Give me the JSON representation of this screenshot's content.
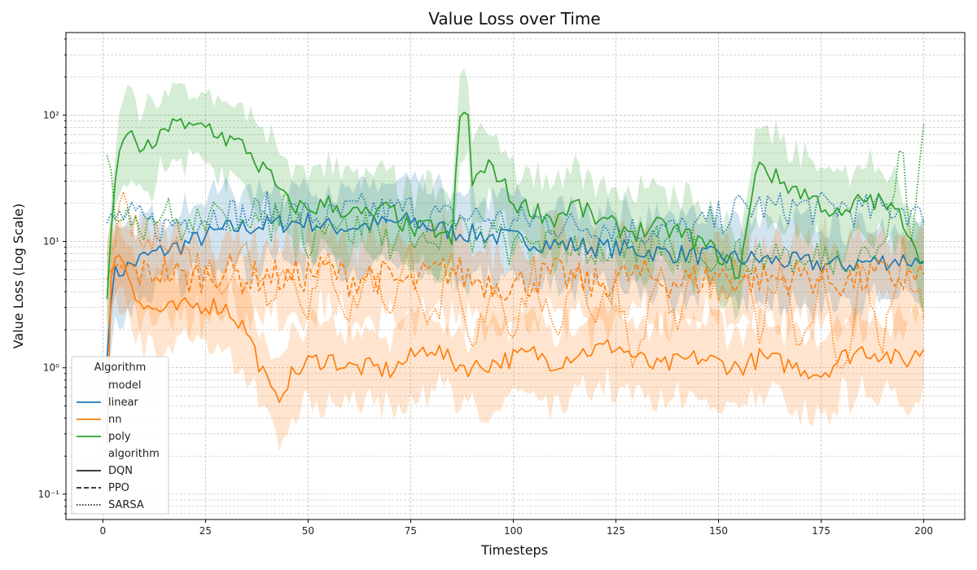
{
  "chart_data": {
    "type": "line",
    "title": "Value Loss over Time",
    "xlabel": "Timesteps",
    "ylabel": "Value Loss (Log Scale)",
    "yscale": "log",
    "xlim": [
      -9,
      210
    ],
    "ylim": [
      0.063,
      450
    ],
    "xticks": [
      0,
      25,
      50,
      75,
      100,
      125,
      150,
      175,
      200
    ],
    "yticks": [
      {
        "value": 0.1,
        "label": "10⁻¹"
      },
      {
        "value": 1,
        "label": "10⁰"
      },
      {
        "value": 10,
        "label": "10¹"
      },
      {
        "value": 100,
        "label": "10²"
      }
    ],
    "grid": true,
    "legend": {
      "position": "lower-left",
      "title": "Algorithm",
      "sections": [
        {
          "heading": "model",
          "entries": [
            {
              "label": "linear",
              "color": "#1f77b4"
            },
            {
              "label": "nn",
              "color": "#ff7f0e"
            },
            {
              "label": "poly",
              "color": "#2ca02c"
            }
          ]
        },
        {
          "heading": "algorithm",
          "entries": [
            {
              "label": "DQN",
              "dash": "solid"
            },
            {
              "label": "PPO",
              "dash": "dashed"
            },
            {
              "label": "SARSA",
              "dash": "dotted"
            }
          ]
        }
      ]
    },
    "series": [
      {
        "name": "linear",
        "algorithm": "DQN",
        "color": "#1f77b4",
        "dash": "solid",
        "band": true,
        "points": [
          [
            1,
            1.2
          ],
          [
            2,
            4
          ],
          [
            3,
            5.5
          ],
          [
            5,
            6
          ],
          [
            10,
            7.5
          ],
          [
            15,
            8.5
          ],
          [
            20,
            9.5
          ],
          [
            25,
            11
          ],
          [
            30,
            12.5
          ],
          [
            35,
            13
          ],
          [
            40,
            13.5
          ],
          [
            45,
            14
          ],
          [
            50,
            14.5
          ],
          [
            55,
            13
          ],
          [
            60,
            13
          ],
          [
            65,
            13.5
          ],
          [
            70,
            14
          ],
          [
            75,
            14.5
          ],
          [
            80,
            13
          ],
          [
            85,
            12
          ],
          [
            90,
            11.5
          ],
          [
            95,
            11
          ],
          [
            100,
            10.5
          ],
          [
            105,
            10
          ],
          [
            110,
            9.5
          ],
          [
            115,
            9.3
          ],
          [
            120,
            9
          ],
          [
            125,
            8.8
          ],
          [
            130,
            8.5
          ],
          [
            135,
            8.2
          ],
          [
            140,
            8
          ],
          [
            145,
            7.8
          ],
          [
            150,
            7.5
          ],
          [
            155,
            7.3
          ],
          [
            160,
            7.2
          ],
          [
            165,
            7
          ],
          [
            170,
            6.8
          ],
          [
            175,
            6.6
          ],
          [
            180,
            6.5
          ],
          [
            185,
            6.8
          ],
          [
            190,
            7
          ],
          [
            195,
            7.2
          ],
          [
            200,
            6.8
          ]
        ]
      },
      {
        "name": "linear",
        "algorithm": "SARSA",
        "color": "#1f77b4",
        "dash": "dotted",
        "band": false,
        "points": [
          [
            1,
            14
          ],
          [
            5,
            16
          ],
          [
            10,
            14
          ],
          [
            15,
            13
          ],
          [
            20,
            15
          ],
          [
            25,
            16
          ],
          [
            30,
            17
          ],
          [
            35,
            16
          ],
          [
            40,
            18
          ],
          [
            45,
            17
          ],
          [
            50,
            16
          ],
          [
            55,
            15
          ],
          [
            60,
            17
          ],
          [
            65,
            18
          ],
          [
            70,
            17
          ],
          [
            75,
            18
          ],
          [
            80,
            16
          ],
          [
            85,
            15
          ],
          [
            90,
            16
          ],
          [
            95,
            15
          ],
          [
            100,
            14
          ],
          [
            105,
            15
          ],
          [
            110,
            14
          ],
          [
            115,
            13
          ],
          [
            120,
            14
          ],
          [
            125,
            13
          ],
          [
            130,
            12
          ],
          [
            135,
            13
          ],
          [
            140,
            12
          ],
          [
            145,
            13
          ],
          [
            150,
            15
          ],
          [
            155,
            18
          ],
          [
            160,
            19
          ],
          [
            165,
            18
          ],
          [
            170,
            19
          ],
          [
            175,
            18
          ],
          [
            180,
            19
          ],
          [
            185,
            17
          ],
          [
            190,
            18
          ],
          [
            195,
            19
          ],
          [
            200,
            14
          ]
        ]
      },
      {
        "name": "nn",
        "algorithm": "DQN",
        "color": "#ff7f0e",
        "dash": "solid",
        "band": true,
        "points": [
          [
            1,
            0.25
          ],
          [
            2,
            6
          ],
          [
            3,
            8
          ],
          [
            5,
            7
          ],
          [
            8,
            4
          ],
          [
            10,
            3
          ],
          [
            15,
            2.8
          ],
          [
            20,
            3
          ],
          [
            25,
            3.2
          ],
          [
            30,
            3
          ],
          [
            35,
            2
          ],
          [
            40,
            0.75
          ],
          [
            42,
            0.55
          ],
          [
            45,
            0.8
          ],
          [
            50,
            1.1
          ],
          [
            55,
            1.2
          ],
          [
            60,
            1.0
          ],
          [
            65,
            1.0
          ],
          [
            70,
            0.95
          ],
          [
            75,
            1.2
          ],
          [
            80,
            1.5
          ],
          [
            85,
            1.1
          ],
          [
            90,
            1.0
          ],
          [
            95,
            1.1
          ],
          [
            100,
            1.2
          ],
          [
            105,
            1.3
          ],
          [
            110,
            1.1
          ],
          [
            115,
            1.3
          ],
          [
            120,
            1.4
          ],
          [
            125,
            1.5
          ],
          [
            130,
            1.2
          ],
          [
            135,
            1.0
          ],
          [
            140,
            1.1
          ],
          [
            145,
            1.2
          ],
          [
            150,
            1.1
          ],
          [
            155,
            1.0
          ],
          [
            160,
            1.2
          ],
          [
            165,
            1.1
          ],
          [
            170,
            1.0
          ],
          [
            175,
            0.9
          ],
          [
            180,
            1.2
          ],
          [
            185,
            1.4
          ],
          [
            190,
            1.3
          ],
          [
            195,
            1.1
          ],
          [
            200,
            1.4
          ]
        ]
      },
      {
        "name": "nn",
        "algorithm": "PPO",
        "color": "#ff7f0e",
        "dash": "dashed",
        "band": true,
        "points": [
          [
            1,
            5
          ],
          [
            5,
            6
          ],
          [
            10,
            5.5
          ],
          [
            15,
            6
          ],
          [
            20,
            5
          ],
          [
            25,
            5.5
          ],
          [
            30,
            6
          ],
          [
            35,
            5
          ],
          [
            40,
            5.5
          ],
          [
            45,
            5
          ],
          [
            50,
            5.5
          ],
          [
            55,
            6
          ],
          [
            60,
            5
          ],
          [
            65,
            5.5
          ],
          [
            70,
            5
          ],
          [
            75,
            4.5
          ],
          [
            80,
            5.5
          ],
          [
            85,
            6
          ],
          [
            90,
            5
          ],
          [
            95,
            4.8
          ],
          [
            100,
            4.5
          ],
          [
            105,
            5
          ],
          [
            110,
            5.5
          ],
          [
            115,
            5
          ],
          [
            120,
            4.5
          ],
          [
            125,
            5
          ],
          [
            130,
            5.5
          ],
          [
            135,
            5
          ],
          [
            140,
            4.8
          ],
          [
            145,
            5
          ],
          [
            150,
            5.5
          ],
          [
            155,
            5
          ],
          [
            160,
            5.2
          ],
          [
            165,
            5
          ],
          [
            170,
            5.5
          ],
          [
            175,
            5
          ],
          [
            180,
            4.8
          ],
          [
            185,
            5
          ],
          [
            190,
            5.5
          ],
          [
            195,
            5
          ],
          [
            200,
            5.5
          ]
        ]
      },
      {
        "name": "nn",
        "algorithm": "SARSA",
        "color": "#ff7f0e",
        "dash": "dotted",
        "band": false,
        "points": [
          [
            1,
            8
          ],
          [
            5,
            18
          ],
          [
            10,
            9
          ],
          [
            15,
            12
          ],
          [
            20,
            8
          ],
          [
            25,
            6
          ],
          [
            30,
            5
          ],
          [
            35,
            9
          ],
          [
            40,
            4
          ],
          [
            45,
            6
          ],
          [
            50,
            3
          ],
          [
            55,
            7
          ],
          [
            60,
            2.5
          ],
          [
            65,
            6
          ],
          [
            70,
            3
          ],
          [
            75,
            8
          ],
          [
            80,
            2
          ],
          [
            85,
            6
          ],
          [
            90,
            1.2
          ],
          [
            95,
            5
          ],
          [
            100,
            2
          ],
          [
            105,
            6
          ],
          [
            110,
            1.5
          ],
          [
            115,
            7
          ],
          [
            120,
            2.5
          ],
          [
            125,
            5
          ],
          [
            130,
            1.0
          ],
          [
            135,
            6
          ],
          [
            140,
            2
          ],
          [
            145,
            8
          ],
          [
            150,
            3
          ],
          [
            155,
            6
          ],
          [
            160,
            2
          ],
          [
            165,
            7
          ],
          [
            170,
            1.5
          ],
          [
            175,
            5
          ],
          [
            180,
            0.8
          ],
          [
            185,
            6
          ],
          [
            190,
            1.5
          ],
          [
            195,
            8
          ],
          [
            200,
            2.5
          ]
        ]
      },
      {
        "name": "poly",
        "algorithm": "DQN",
        "color": "#2ca02c",
        "dash": "solid",
        "band": true,
        "points": [
          [
            1,
            3.5
          ],
          [
            3,
            30
          ],
          [
            5,
            70
          ],
          [
            8,
            65
          ],
          [
            10,
            50
          ],
          [
            15,
            70
          ],
          [
            17,
            100
          ],
          [
            20,
            75
          ],
          [
            25,
            85
          ],
          [
            30,
            65
          ],
          [
            35,
            55
          ],
          [
            38,
            40
          ],
          [
            40,
            35
          ],
          [
            45,
            20
          ],
          [
            50,
            18
          ],
          [
            55,
            20
          ],
          [
            60,
            17
          ],
          [
            65,
            16
          ],
          [
            70,
            18
          ],
          [
            75,
            12
          ],
          [
            80,
            13
          ],
          [
            85,
            10
          ],
          [
            87,
            95
          ],
          [
            89,
            100
          ],
          [
            90,
            30
          ],
          [
            95,
            40
          ],
          [
            100,
            20
          ],
          [
            105,
            18
          ],
          [
            110,
            15
          ],
          [
            115,
            20
          ],
          [
            120,
            15
          ],
          [
            125,
            13
          ],
          [
            130,
            12
          ],
          [
            135,
            13
          ],
          [
            140,
            12
          ],
          [
            145,
            10
          ],
          [
            150,
            8
          ],
          [
            155,
            5.5
          ],
          [
            160,
            48
          ],
          [
            162,
            35
          ],
          [
            165,
            30
          ],
          [
            170,
            25
          ],
          [
            175,
            20
          ],
          [
            180,
            15
          ],
          [
            185,
            22
          ],
          [
            190,
            20
          ],
          [
            195,
            15
          ],
          [
            200,
            7
          ]
        ]
      },
      {
        "name": "poly",
        "algorithm": "SARSA",
        "color": "#2ca02c",
        "dash": "dotted",
        "band": false,
        "points": [
          [
            1,
            48
          ],
          [
            3,
            15
          ],
          [
            5,
            20
          ],
          [
            10,
            14
          ],
          [
            15,
            18
          ],
          [
            20,
            12
          ],
          [
            25,
            16
          ],
          [
            30,
            14
          ],
          [
            35,
            18
          ],
          [
            40,
            12
          ],
          [
            45,
            22
          ],
          [
            50,
            10
          ],
          [
            55,
            16
          ],
          [
            60,
            12
          ],
          [
            65,
            14
          ],
          [
            70,
            10
          ],
          [
            75,
            13
          ],
          [
            80,
            9
          ],
          [
            85,
            14
          ],
          [
            90,
            10
          ],
          [
            95,
            12
          ],
          [
            100,
            8
          ],
          [
            105,
            11
          ],
          [
            110,
            9
          ],
          [
            115,
            10
          ],
          [
            120,
            8
          ],
          [
            125,
            9
          ],
          [
            130,
            7
          ],
          [
            135,
            10
          ],
          [
            140,
            8
          ],
          [
            145,
            9
          ],
          [
            150,
            7
          ],
          [
            155,
            8
          ],
          [
            160,
            7
          ],
          [
            165,
            9
          ],
          [
            170,
            6
          ],
          [
            175,
            8
          ],
          [
            180,
            7
          ],
          [
            185,
            9
          ],
          [
            190,
            8
          ],
          [
            195,
            60
          ],
          [
            197,
            8
          ],
          [
            200,
            85
          ]
        ]
      }
    ]
  }
}
